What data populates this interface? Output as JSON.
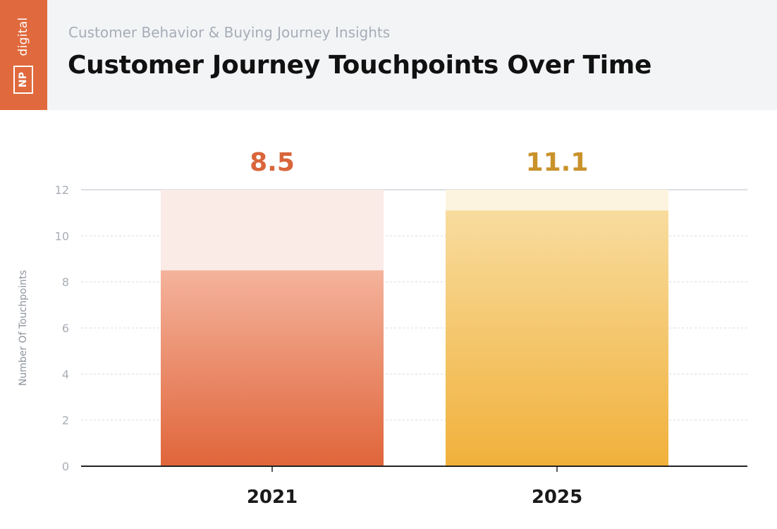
{
  "logo": {
    "word": "digital",
    "mark": "NP"
  },
  "header": {
    "subtitle": "Customer Behavior & Buying Journey Insights",
    "title": "Customer Journey Touchpoints Over Time"
  },
  "colors": {
    "brand": "#e0693d",
    "bar_2021_top": "#f4b39c",
    "bar_2021_bottom": "#e0653a",
    "bar_2021_bg": "#fbebe6",
    "bar_2025_top": "#f8dc9e",
    "bar_2025_bottom": "#f1b13b",
    "bar_2025_bg": "#fdf4e0",
    "label_2021": "#d9653a",
    "label_2025": "#c9922a"
  },
  "chart_data": {
    "type": "bar",
    "title": "Customer Journey Touchpoints Over Time",
    "xlabel": "",
    "ylabel": "Number Of Touchpoints",
    "categories": [
      "2021",
      "2025"
    ],
    "values": [
      8.5,
      11.1
    ],
    "value_labels": [
      "8.5",
      "11.1"
    ],
    "ylim": [
      0,
      12
    ],
    "yticks": [
      0,
      2,
      4,
      6,
      8,
      10,
      12
    ],
    "grid": true
  }
}
